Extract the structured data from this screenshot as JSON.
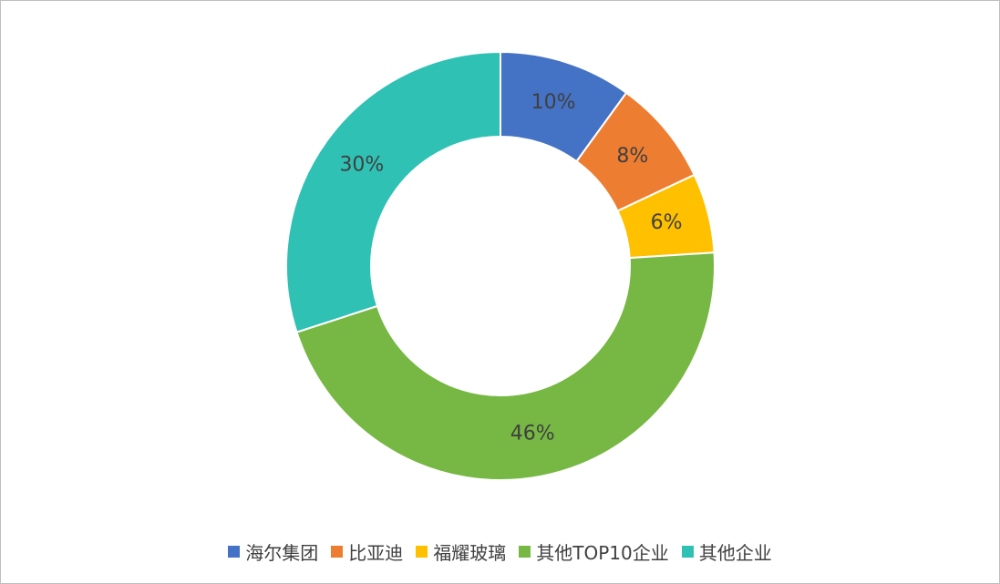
{
  "chart_data": {
    "type": "donut",
    "categories": [
      "海尔集团",
      "比亚迪",
      "福耀玻璃",
      "其他TOP10企业",
      "其他企业"
    ],
    "values": [
      10,
      8,
      6,
      46,
      30
    ],
    "value_labels": [
      "10%",
      "8%",
      "6%",
      "46%",
      "30%"
    ],
    "colors": [
      "#4472c4",
      "#ed7d31",
      "#ffc000",
      "#76b843",
      "#2fc1b4"
    ],
    "legend": "bottom"
  }
}
